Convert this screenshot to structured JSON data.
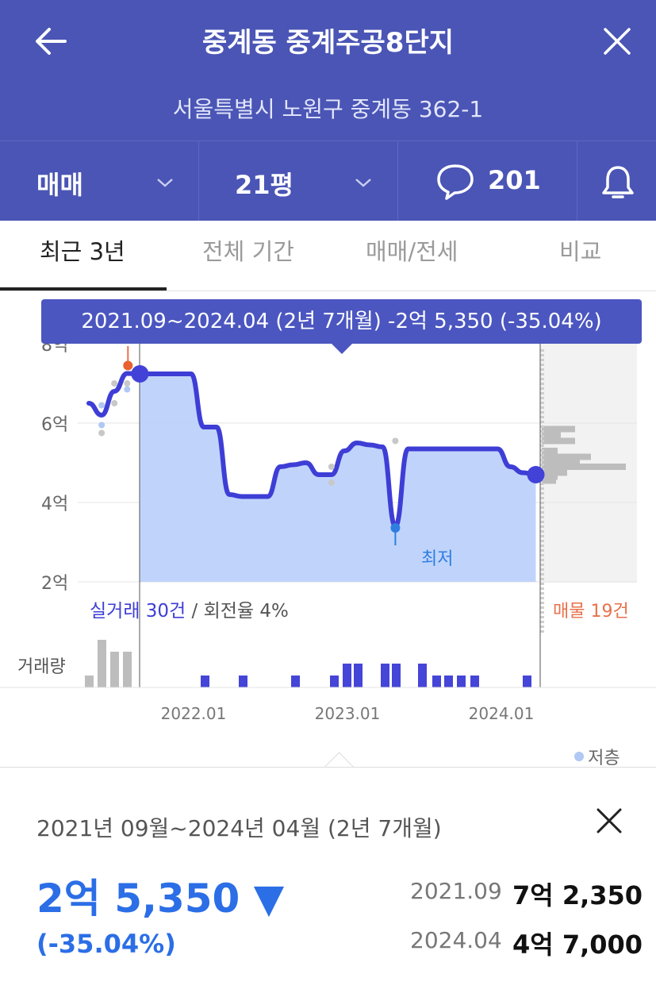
{
  "header": {
    "title": "중계동 중계주공8단지",
    "address": "서울특별시 노원구 중계동 362-1",
    "back_icon": "arrow-left-icon",
    "close_icon": "close-icon"
  },
  "selectors": {
    "deal_type": "매매",
    "size": "21평",
    "comment_count": "201",
    "comment_icon": "speech-bubble-icon",
    "bell_icon": "bell-icon"
  },
  "tabs": [
    {
      "label": "최근 3년",
      "active": true
    },
    {
      "label": "전체 기간",
      "active": false
    },
    {
      "label": "매매/전세",
      "active": false
    },
    {
      "label": "비교",
      "active": false
    }
  ],
  "tooltip": "2021.09~2024.04 (2년 7개월)  -2억 5,350 (-35.04%)",
  "chart_data": {
    "type": "line",
    "x_tick_labels": [
      "2022.01",
      "2023.01",
      "2024.01"
    ],
    "y_tick_labels": [
      "8억",
      "6억",
      "4억",
      "2억"
    ],
    "ylim": [
      2,
      8
    ],
    "x": [
      "2021.05",
      "2021.06",
      "2021.07",
      "2021.08",
      "2021.09",
      "2021.10",
      "2021.11",
      "2021.12",
      "2022.01",
      "2022.02",
      "2022.03",
      "2022.04",
      "2022.05",
      "2022.06",
      "2022.07",
      "2022.08",
      "2022.09",
      "2022.10",
      "2022.11",
      "2022.12",
      "2023.01",
      "2023.02",
      "2023.03",
      "2023.04",
      "2023.05",
      "2023.06",
      "2023.07",
      "2023.08",
      "2023.09",
      "2023.10",
      "2023.11",
      "2023.12",
      "2024.01",
      "2024.02",
      "2024.03",
      "2024.04"
    ],
    "price": [
      6.5,
      6.2,
      6.8,
      7.25,
      7.24,
      7.24,
      7.24,
      7.24,
      7.24,
      5.9,
      5.9,
      4.2,
      4.15,
      4.15,
      4.15,
      4.9,
      4.95,
      5.0,
      4.7,
      4.7,
      5.3,
      5.5,
      5.45,
      5.4,
      3.4,
      5.35,
      5.35,
      5.35,
      5.35,
      5.35,
      5.35,
      5.35,
      5.35,
      4.9,
      4.75,
      4.7
    ],
    "low_label": "최저",
    "volume_label": "거래량",
    "deals_label": "실거래 30건",
    "turnover_label": "/ 회전율 4%",
    "listings_label": "매물 19건",
    "legend_low_floor": "저층",
    "colors": {
      "line": "#3e3ed6",
      "area": "#b9cffb",
      "volume": "#4545d8",
      "listing": "#e8714a"
    }
  },
  "summary": {
    "period": "2021년 09월~2024년 04월 (2년 7개월)",
    "diff": "2억 5,350 ▼",
    "pct": "(-35.04%)",
    "start_date": "2021.09",
    "start_value": "7억 2,350",
    "end_date": "2024.04",
    "end_value": "4억 7,000"
  }
}
